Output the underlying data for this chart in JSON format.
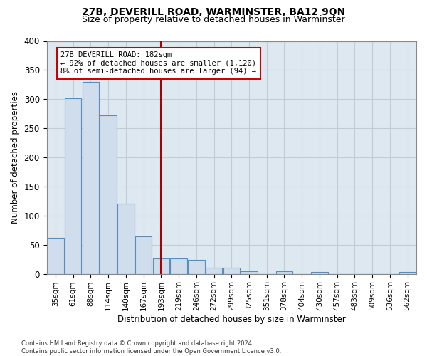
{
  "title_line1": "27B, DEVERILL ROAD, WARMINSTER, BA12 9QN",
  "title_line2": "Size of property relative to detached houses in Warminster",
  "xlabel": "Distribution of detached houses by size in Warminster",
  "ylabel": "Number of detached properties",
  "bar_labels": [
    "35sqm",
    "61sqm",
    "88sqm",
    "114sqm",
    "140sqm",
    "167sqm",
    "193sqm",
    "219sqm",
    "246sqm",
    "272sqm",
    "299sqm",
    "325sqm",
    "351sqm",
    "378sqm",
    "404sqm",
    "430sqm",
    "457sqm",
    "483sqm",
    "509sqm",
    "536sqm",
    "562sqm"
  ],
  "bar_values": [
    62,
    301,
    330,
    272,
    120,
    64,
    27,
    27,
    24,
    11,
    11,
    5,
    0,
    4,
    0,
    3,
    0,
    0,
    0,
    0,
    3
  ],
  "bar_color": "#cfdded",
  "bar_edge_color": "#5b8db8",
  "property_line_x": 6.0,
  "annotation_text": "27B DEVERILL ROAD: 182sqm\n← 92% of detached houses are smaller (1,120)\n8% of semi-detached houses are larger (94) →",
  "annotation_box_color": "#ffffff",
  "annotation_box_edge": "#cc0000",
  "red_line_color": "#aa0000",
  "ylim": [
    0,
    400
  ],
  "yticks": [
    0,
    50,
    100,
    150,
    200,
    250,
    300,
    350,
    400
  ],
  "grid_color": "#c0ccd8",
  "bg_color": "#dde8f0",
  "footnote": "Contains HM Land Registry data © Crown copyright and database right 2024.\nContains public sector information licensed under the Open Government Licence v3.0.",
  "fig_width": 6.0,
  "fig_height": 5.0
}
